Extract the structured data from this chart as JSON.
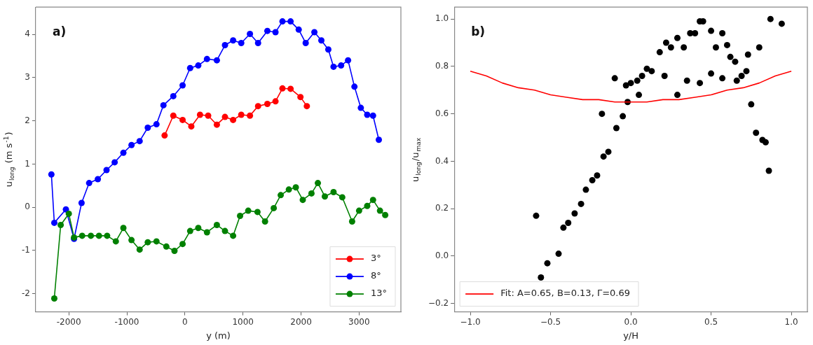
{
  "chart_data": [
    {
      "type": "line",
      "xlabel": "y (m)",
      "ylabel": "u$_{long}$ (m s$^{-1}$)",
      "annotations": [
        "a)"
      ],
      "xlim": [
        -2570,
        3720
      ],
      "ylim": [
        -2.42,
        4.63
      ],
      "xticks": [
        -2000,
        -1000,
        0,
        1000,
        2000,
        3000
      ],
      "yticks": [
        -2,
        -1,
        0,
        1,
        2,
        3,
        4
      ],
      "grid": false,
      "legend": "bottom right",
      "marker": "circle",
      "series": [
        {
          "name": "3°",
          "color": "#ff0000",
          "x": [
            -350,
            -200,
            -40,
            110,
            260,
            400,
            550,
            690,
            830,
            970,
            1120,
            1260,
            1420,
            1560,
            1680,
            1820,
            1990,
            2100
          ],
          "values": [
            1.66,
            2.12,
            2.02,
            1.87,
            2.14,
            2.12,
            1.91,
            2.09,
            2.02,
            2.14,
            2.12,
            2.34,
            2.39,
            2.45,
            2.75,
            2.74,
            2.55,
            2.34
          ]
        },
        {
          "name": "8°",
          "color": "#0000ff",
          "x": [
            -2300,
            -2250,
            -2050,
            -1910,
            -1780,
            -1650,
            -1500,
            -1350,
            -1210,
            -1060,
            -920,
            -780,
            -640,
            -490,
            -370,
            -200,
            -40,
            90,
            230,
            380,
            550,
            690,
            830,
            970,
            1120,
            1260,
            1420,
            1560,
            1680,
            1820,
            1960,
            2080,
            2230,
            2350,
            2470,
            2560,
            2690,
            2810,
            2920,
            3030,
            3140,
            3240,
            3340
          ],
          "values": [
            0.76,
            -0.36,
            -0.05,
            -0.73,
            0.1,
            0.56,
            0.65,
            0.86,
            1.04,
            1.26,
            1.44,
            1.53,
            1.84,
            1.92,
            2.36,
            2.57,
            2.82,
            3.22,
            3.28,
            3.43,
            3.4,
            3.75,
            3.86,
            3.8,
            4.01,
            3.8,
            4.08,
            4.05,
            4.3,
            4.3,
            4.11,
            3.8,
            4.05,
            3.86,
            3.65,
            3.25,
            3.28,
            3.4,
            2.79,
            2.3,
            2.14,
            2.12,
            1.56
          ]
        },
        {
          "name": "13°",
          "color": "#008000",
          "x": [
            -2250,
            -2140,
            -2000,
            -1910,
            -1770,
            -1620,
            -1480,
            -1340,
            -1190,
            -1060,
            -920,
            -780,
            -640,
            -490,
            -320,
            -180,
            -40,
            90,
            230,
            380,
            550,
            690,
            830,
            950,
            1090,
            1250,
            1380,
            1530,
            1650,
            1790,
            1910,
            2030,
            2180,
            2290,
            2410,
            2560,
            2710,
            2880,
            3000,
            3140,
            3240,
            3360,
            3450
          ],
          "values": [
            -2.11,
            -0.41,
            -0.15,
            -0.7,
            -0.66,
            -0.66,
            -0.66,
            -0.66,
            -0.79,
            -0.48,
            -0.76,
            -0.98,
            -0.81,
            -0.79,
            -0.91,
            -1.01,
            -0.85,
            -0.55,
            -0.48,
            -0.58,
            -0.41,
            -0.55,
            -0.66,
            -0.2,
            -0.08,
            -0.11,
            -0.33,
            -0.02,
            0.28,
            0.41,
            0.46,
            0.17,
            0.32,
            0.56,
            0.25,
            0.35,
            0.23,
            -0.33,
            -0.08,
            0.03,
            0.17,
            -0.08,
            -0.18
          ]
        }
      ]
    },
    {
      "type": "scatter",
      "xlabel": "y/H",
      "ylabel": "u$_{long}$/u$_{max}$",
      "annotations": [
        "b)"
      ],
      "xlim": [
        -1.1,
        1.1
      ],
      "ylim": [
        -0.235,
        1.05
      ],
      "xticks": [
        {
          "value": -1,
          "label": "−1.0"
        },
        {
          "value": -0.5,
          "label": "−0.5"
        },
        {
          "value": 0,
          "label": "0.0"
        },
        {
          "value": 0.5,
          "label": "0.5"
        },
        {
          "value": 1,
          "label": "1.0"
        }
      ],
      "yticks": [
        {
          "value": -0.2,
          "label": "−0.2"
        },
        {
          "value": 0,
          "label": "0.0"
        },
        {
          "value": 0.2,
          "label": "0.2"
        },
        {
          "value": 0.4,
          "label": "0.4"
        },
        {
          "value": 0.6,
          "label": "0.6"
        },
        {
          "value": 0.8,
          "label": "0.8"
        },
        {
          "value": 1,
          "label": "1.0"
        }
      ],
      "grid": false,
      "legend": "bottom left",
      "marker": "circle",
      "series": [
        {
          "type": "scatter",
          "color": "#000000",
          "x": [
            0.45,
            0.43,
            0.87,
            0.94,
            0.37,
            0.4,
            0.29,
            0.5,
            0.57,
            0.22,
            0.25,
            0.33,
            0.18,
            0.53,
            0.6,
            0.8,
            0.73,
            0.62,
            0.65,
            0.1,
            0.13,
            0.72,
            0.69,
            0.66,
            0.21,
            0.5,
            0.57,
            0.35,
            0.43,
            -0.1,
            0.07,
            0.04,
            0,
            -0.03,
            0.05,
            -0.02,
            0.29,
            0.75,
            -0.18,
            -0.05,
            -0.09,
            -0.14,
            -0.17,
            0.78,
            0.82,
            0.84,
            0.86,
            -0.21,
            -0.24,
            -0.28,
            -0.31,
            -0.35,
            -0.39,
            -0.42,
            -0.59,
            -0.45,
            -0.52,
            -0.56
          ],
          "values": [
            0.99,
            0.99,
            1.0,
            0.98,
            0.94,
            0.94,
            0.92,
            0.95,
            0.94,
            0.9,
            0.88,
            0.88,
            0.86,
            0.88,
            0.89,
            0.88,
            0.85,
            0.84,
            0.82,
            0.79,
            0.78,
            0.78,
            0.76,
            0.74,
            0.76,
            0.77,
            0.75,
            0.74,
            0.73,
            0.75,
            0.76,
            0.74,
            0.73,
            0.72,
            0.68,
            0.65,
            0.68,
            0.64,
            0.6,
            0.59,
            0.54,
            0.44,
            0.42,
            0.52,
            0.49,
            0.48,
            0.36,
            0.34,
            0.32,
            0.28,
            0.22,
            0.18,
            0.14,
            0.12,
            0.17,
            0.01,
            -0.03,
            -0.09
          ]
        },
        {
          "type": "line",
          "name": "Fit: A=0.65, B=0.13, Γ=0.69",
          "color": "#ff0000",
          "marker": "none",
          "x": [
            -1,
            -0.9,
            -0.8,
            -0.7,
            -0.6,
            -0.5,
            -0.4,
            -0.3,
            -0.2,
            -0.1,
            0,
            0.1,
            0.2,
            0.3,
            0.4,
            0.5,
            0.6,
            0.7,
            0.8,
            0.9,
            1
          ],
          "values": [
            0.78,
            0.76,
            0.73,
            0.71,
            0.7,
            0.68,
            0.67,
            0.66,
            0.66,
            0.65,
            0.65,
            0.65,
            0.66,
            0.66,
            0.67,
            0.68,
            0.7,
            0.71,
            0.73,
            0.76,
            0.78
          ]
        }
      ]
    }
  ]
}
